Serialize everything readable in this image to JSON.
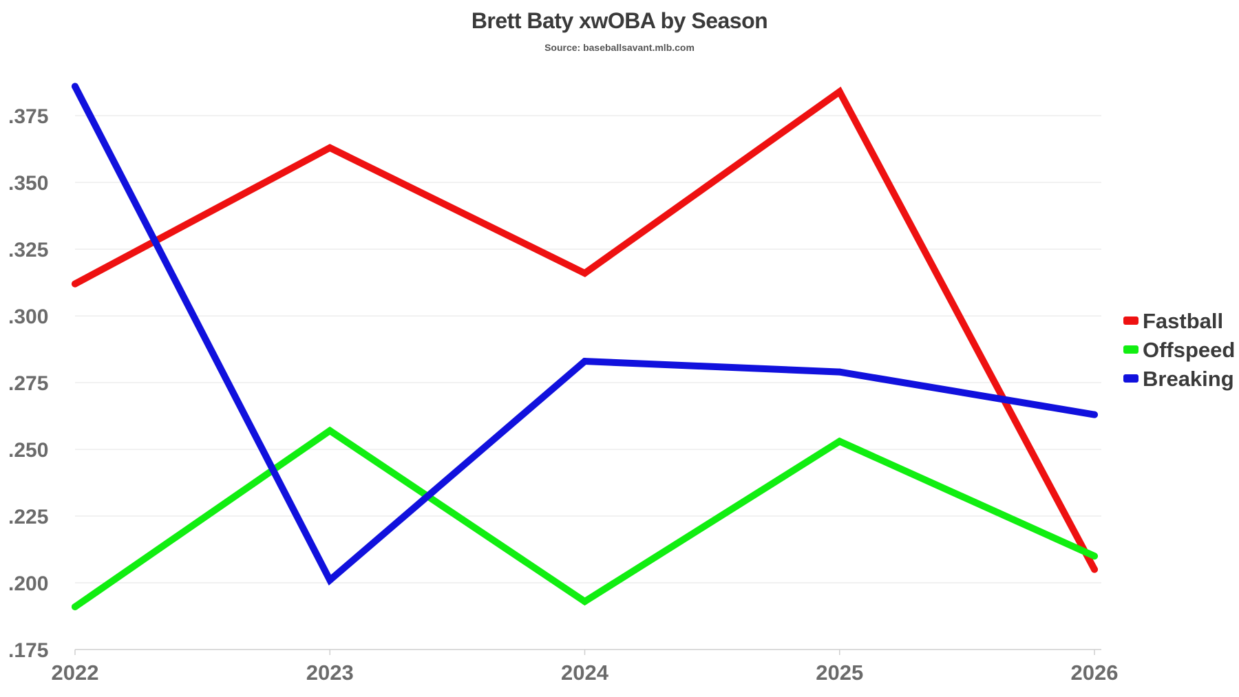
{
  "chart_data": {
    "type": "line",
    "title": "Brett Baty xwOBA by Season",
    "subtitle": "Source: baseballsavant.mlb.com",
    "xlabel": "",
    "ylabel": "",
    "x": [
      "2022",
      "2023",
      "2024",
      "2025",
      "2026"
    ],
    "y_ticks": [
      ".175",
      ".200",
      ".225",
      ".250",
      ".275",
      ".300",
      ".325",
      ".350",
      ".375"
    ],
    "ylim": [
      0.175,
      0.39
    ],
    "grid": true,
    "legend_position": "right",
    "series": [
      {
        "name": "Fastball",
        "color": "#ee1111",
        "values": [
          0.312,
          0.363,
          0.316,
          0.384,
          0.205
        ]
      },
      {
        "name": "Offspeed",
        "color": "#11ee11",
        "values": [
          0.191,
          0.257,
          0.193,
          0.253,
          0.21
        ]
      },
      {
        "name": "Breaking",
        "color": "#1111dd",
        "values": [
          0.386,
          0.201,
          0.283,
          0.279,
          0.263
        ]
      }
    ]
  }
}
